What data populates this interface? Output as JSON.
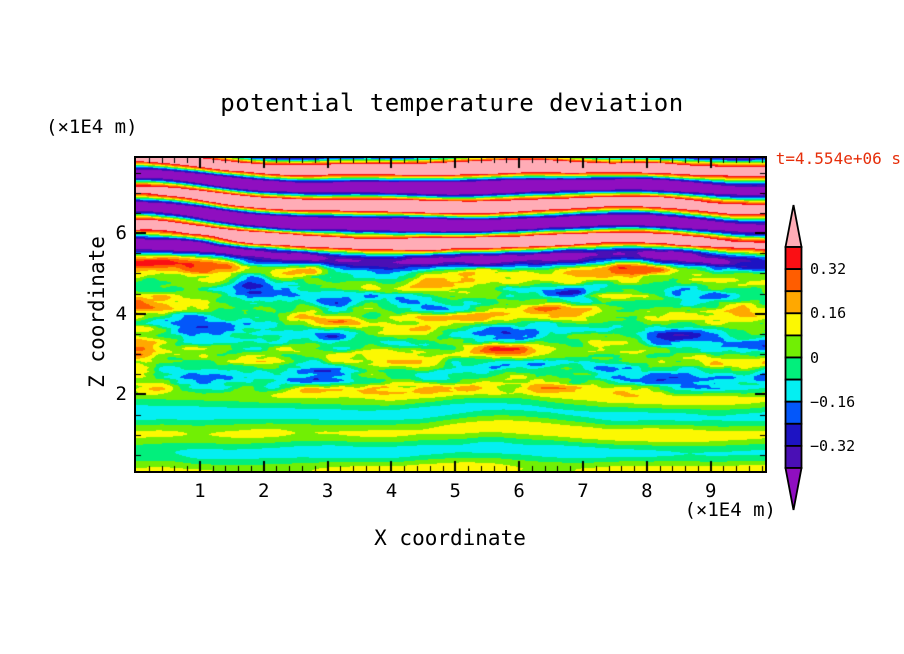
{
  "title": "potential temperature deviation",
  "timestamp": "t=4.554e+06 s",
  "timestamp_color": "#e62e0a",
  "x_axis": {
    "label": "X coordinate",
    "unit": "(×1E4 m)",
    "tick_labels": [
      "1",
      "2",
      "3",
      "4",
      "5",
      "6",
      "7",
      "8",
      "9"
    ],
    "tick_values": [
      1,
      2,
      3,
      4,
      5,
      6,
      7,
      8,
      9
    ],
    "minor_step": 0.2
  },
  "y_axis": {
    "label": "Z coordinate",
    "unit": "(×1E4 m)",
    "tick_labels": [
      "6",
      "4",
      "2"
    ],
    "tick_values": [
      6,
      4,
      2
    ],
    "minor_step": 0.5
  },
  "colorbar": {
    "labels": [
      "0.32",
      "0.16",
      "0",
      "−0.16",
      "−0.32"
    ],
    "values": [
      0.32,
      0.16,
      0,
      -0.16,
      -0.32
    ],
    "outline_color": "#000000"
  },
  "chart_data": {
    "type": "heatmap",
    "title": "potential temperature deviation",
    "xlabel": "X coordinate (×1E4 m)",
    "ylabel": "Z coordinate (×1E4 m)",
    "time_annotation": "t=4.554e+06 s",
    "x_range": [
      0,
      9.85
    ],
    "z_range": [
      0.1,
      7.86
    ],
    "contour_interval": 0.08,
    "contour_levels": [
      -0.4,
      -0.32,
      -0.24,
      -0.16,
      -0.08,
      0,
      0.08,
      0.16,
      0.24,
      0.32,
      0.4
    ],
    "level_colors": [
      "#8f0ec0",
      "#4a0fb5",
      "#1d13c3",
      "#0357fa",
      "#04eff2",
      "#02ef7c",
      "#71ef04",
      "#fcf802",
      "#ffa800",
      "#ff5d00",
      "#fa0f14",
      "#ffacb6"
    ],
    "structure": {
      "bottom_layer": {
        "z_span": [
          0.1,
          1.9
        ],
        "description": "quiescent layer, deviation within ±0.08: spring-green background with chartreuse swirl billows",
        "amplitude": 0.05
      },
      "middle_layer": {
        "z_span": [
          1.9,
          5.1
        ],
        "description": "fine horizontally-elongated turbulent streaks spanning roughly ±0.35 (yellow/orange/red and cyan/blue/navy on green)",
        "amplitude": 0.3
      },
      "top_layer": {
        "z_span": [
          5.1,
          7.86
        ],
        "description": "large-amplitude wavy gravity-wave bands saturating beyond ±0.40: alternating pink and purple with thin rainbow fringes",
        "amplitude": 0.63
      }
    },
    "render": {
      "band_wavelength": 0.95,
      "phase_wobble": 4.0,
      "seed": 7
    }
  }
}
